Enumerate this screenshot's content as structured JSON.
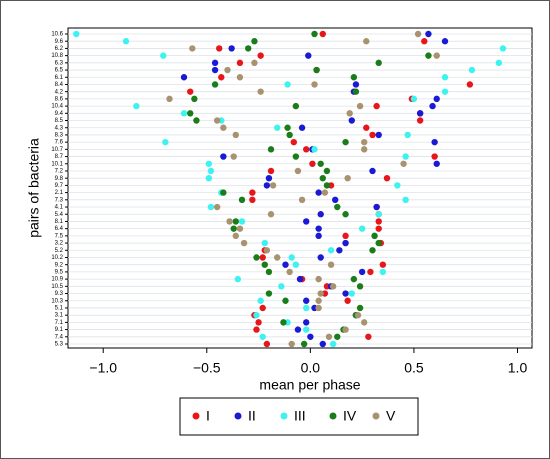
{
  "chart_data": {
    "type": "scatter",
    "xlabel": "mean per phase",
    "ylabel": "pairs of bacteria",
    "categories": [
      "10.6",
      "9.6",
      "6.2",
      "10.8",
      "6.3",
      "6.5",
      "6.1",
      "8.4",
      "4.2",
      "8.6",
      "10.4",
      "9.4",
      "8.5",
      "4.3",
      "8.3",
      "7.6",
      "10.7",
      "8.7",
      "10.1",
      "7.2",
      "9.8",
      "9.7",
      "2.1",
      "7.3",
      "4.1",
      "5.4",
      "8.1",
      "6.4",
      "7.5",
      "3.2",
      "5.2",
      "10.2",
      "9.2",
      "9.5",
      "10.9",
      "10.5",
      "9.3",
      "10.3",
      "5.1",
      "3.1",
      "7.1",
      "9.1",
      "7.4",
      "5.3"
    ],
    "series": [
      {
        "name": "I",
        "color": "#e8161b",
        "values": [
          0.06,
          0.55,
          -0.44,
          -0.24,
          -0.34,
          0.03,
          -0.43,
          0.77,
          -0.58,
          0.49,
          0.32,
          0.53,
          0.53,
          0.27,
          0.3,
          -0.08,
          -0.02,
          0.6,
          0.01,
          -0.19,
          0.37,
          0.1,
          -0.28,
          -0.28,
          0.32,
          0.33,
          0.33,
          0.33,
          0.17,
          0.34,
          -0.22,
          -0.23,
          0.35,
          0.29,
          -0.04,
          0.08,
          0.07,
          0.18,
          -0.23,
          -0.27,
          -0.25,
          -0.26,
          0.28,
          -0.21
        ]
      },
      {
        "name": "II",
        "color": "#1a1ad6",
        "values": [
          0.57,
          0.65,
          -0.38,
          -0.01,
          -0.46,
          -0.46,
          -0.61,
          0.22,
          0.21,
          0.61,
          0.59,
          0.53,
          0.2,
          -0.04,
          0.33,
          0.6,
          0.01,
          -0.42,
          0.61,
          0.3,
          -0.2,
          -0.21,
          0.04,
          0.12,
          0.32,
          0.05,
          -0.02,
          0.04,
          0.04,
          0.17,
          0.14,
          0.05,
          -0.12,
          0.25,
          -0.05,
          0.1,
          0.17,
          -0.02,
          0.02,
          0.22,
          -0.02,
          -0.06,
          0.0,
          0.06
        ]
      },
      {
        "name": "III",
        "color": "#3ef2f2",
        "values": [
          -1.13,
          -0.89,
          0.93,
          -0.71,
          0.91,
          0.78,
          0.65,
          -0.11,
          0.65,
          0.5,
          -0.84,
          -0.61,
          -0.43,
          -0.16,
          0.47,
          -0.7,
          0.02,
          0.46,
          -0.49,
          -0.48,
          -0.49,
          0.42,
          -0.43,
          0.46,
          -0.48,
          0.33,
          -0.33,
          0.25,
          0.31,
          -0.22,
          0.1,
          -0.09,
          -0.07,
          0.35,
          -0.35,
          -0.14,
          0.2,
          -0.24,
          -0.02,
          -0.26,
          -0.11,
          -0.02,
          -0.23,
          0.11
        ]
      },
      {
        "name": "IV",
        "color": "#1a7d1a",
        "values": [
          0.02,
          -0.27,
          -0.3,
          0.57,
          0.33,
          0.03,
          0.21,
          -0.46,
          0.22,
          -0.56,
          -0.07,
          -0.58,
          -0.55,
          -0.11,
          -0.1,
          0.17,
          -0.19,
          -0.07,
          0.05,
          0.08,
          0.06,
          0.08,
          -0.42,
          -0.33,
          0.13,
          0.17,
          -0.36,
          -0.37,
          0.31,
          0.33,
          0.3,
          -0.26,
          -0.22,
          -0.2,
          0.21,
          0.24,
          -0.2,
          -0.12,
          0.24,
          0.22,
          -0.13,
          0.16,
          0.13,
          -0.03
        ]
      },
      {
        "name": "V",
        "color": "#a89270",
        "values": [
          0.52,
          0.27,
          -0.57,
          0.61,
          -0.27,
          -0.4,
          -0.34,
          0.02,
          -0.24,
          -0.68,
          0.24,
          0.19,
          -0.45,
          -0.42,
          -0.36,
          0.26,
          0.26,
          -0.37,
          0.45,
          -0.06,
          0.18,
          -0.18,
          0.07,
          -0.04,
          -0.45,
          -0.19,
          -0.39,
          -0.34,
          -0.36,
          -0.32,
          -0.21,
          -0.16,
          0.1,
          -0.1,
          0.04,
          0.11,
          0.05,
          0.04,
          0.04,
          0.23,
          0.26,
          0.17,
          0.09,
          -0.09
        ]
      }
    ],
    "xlim": [
      -1.17,
      1.07
    ],
    "xticks": [
      {
        "value": -1,
        "label": "−1.0"
      },
      {
        "value": -0.5,
        "label": "−0.5"
      },
      {
        "value": 0,
        "label": "0.0"
      },
      0.5,
      {
        "value": 1,
        "label": "1.0"
      }
    ],
    "grid": true,
    "legend": "bottom"
  }
}
